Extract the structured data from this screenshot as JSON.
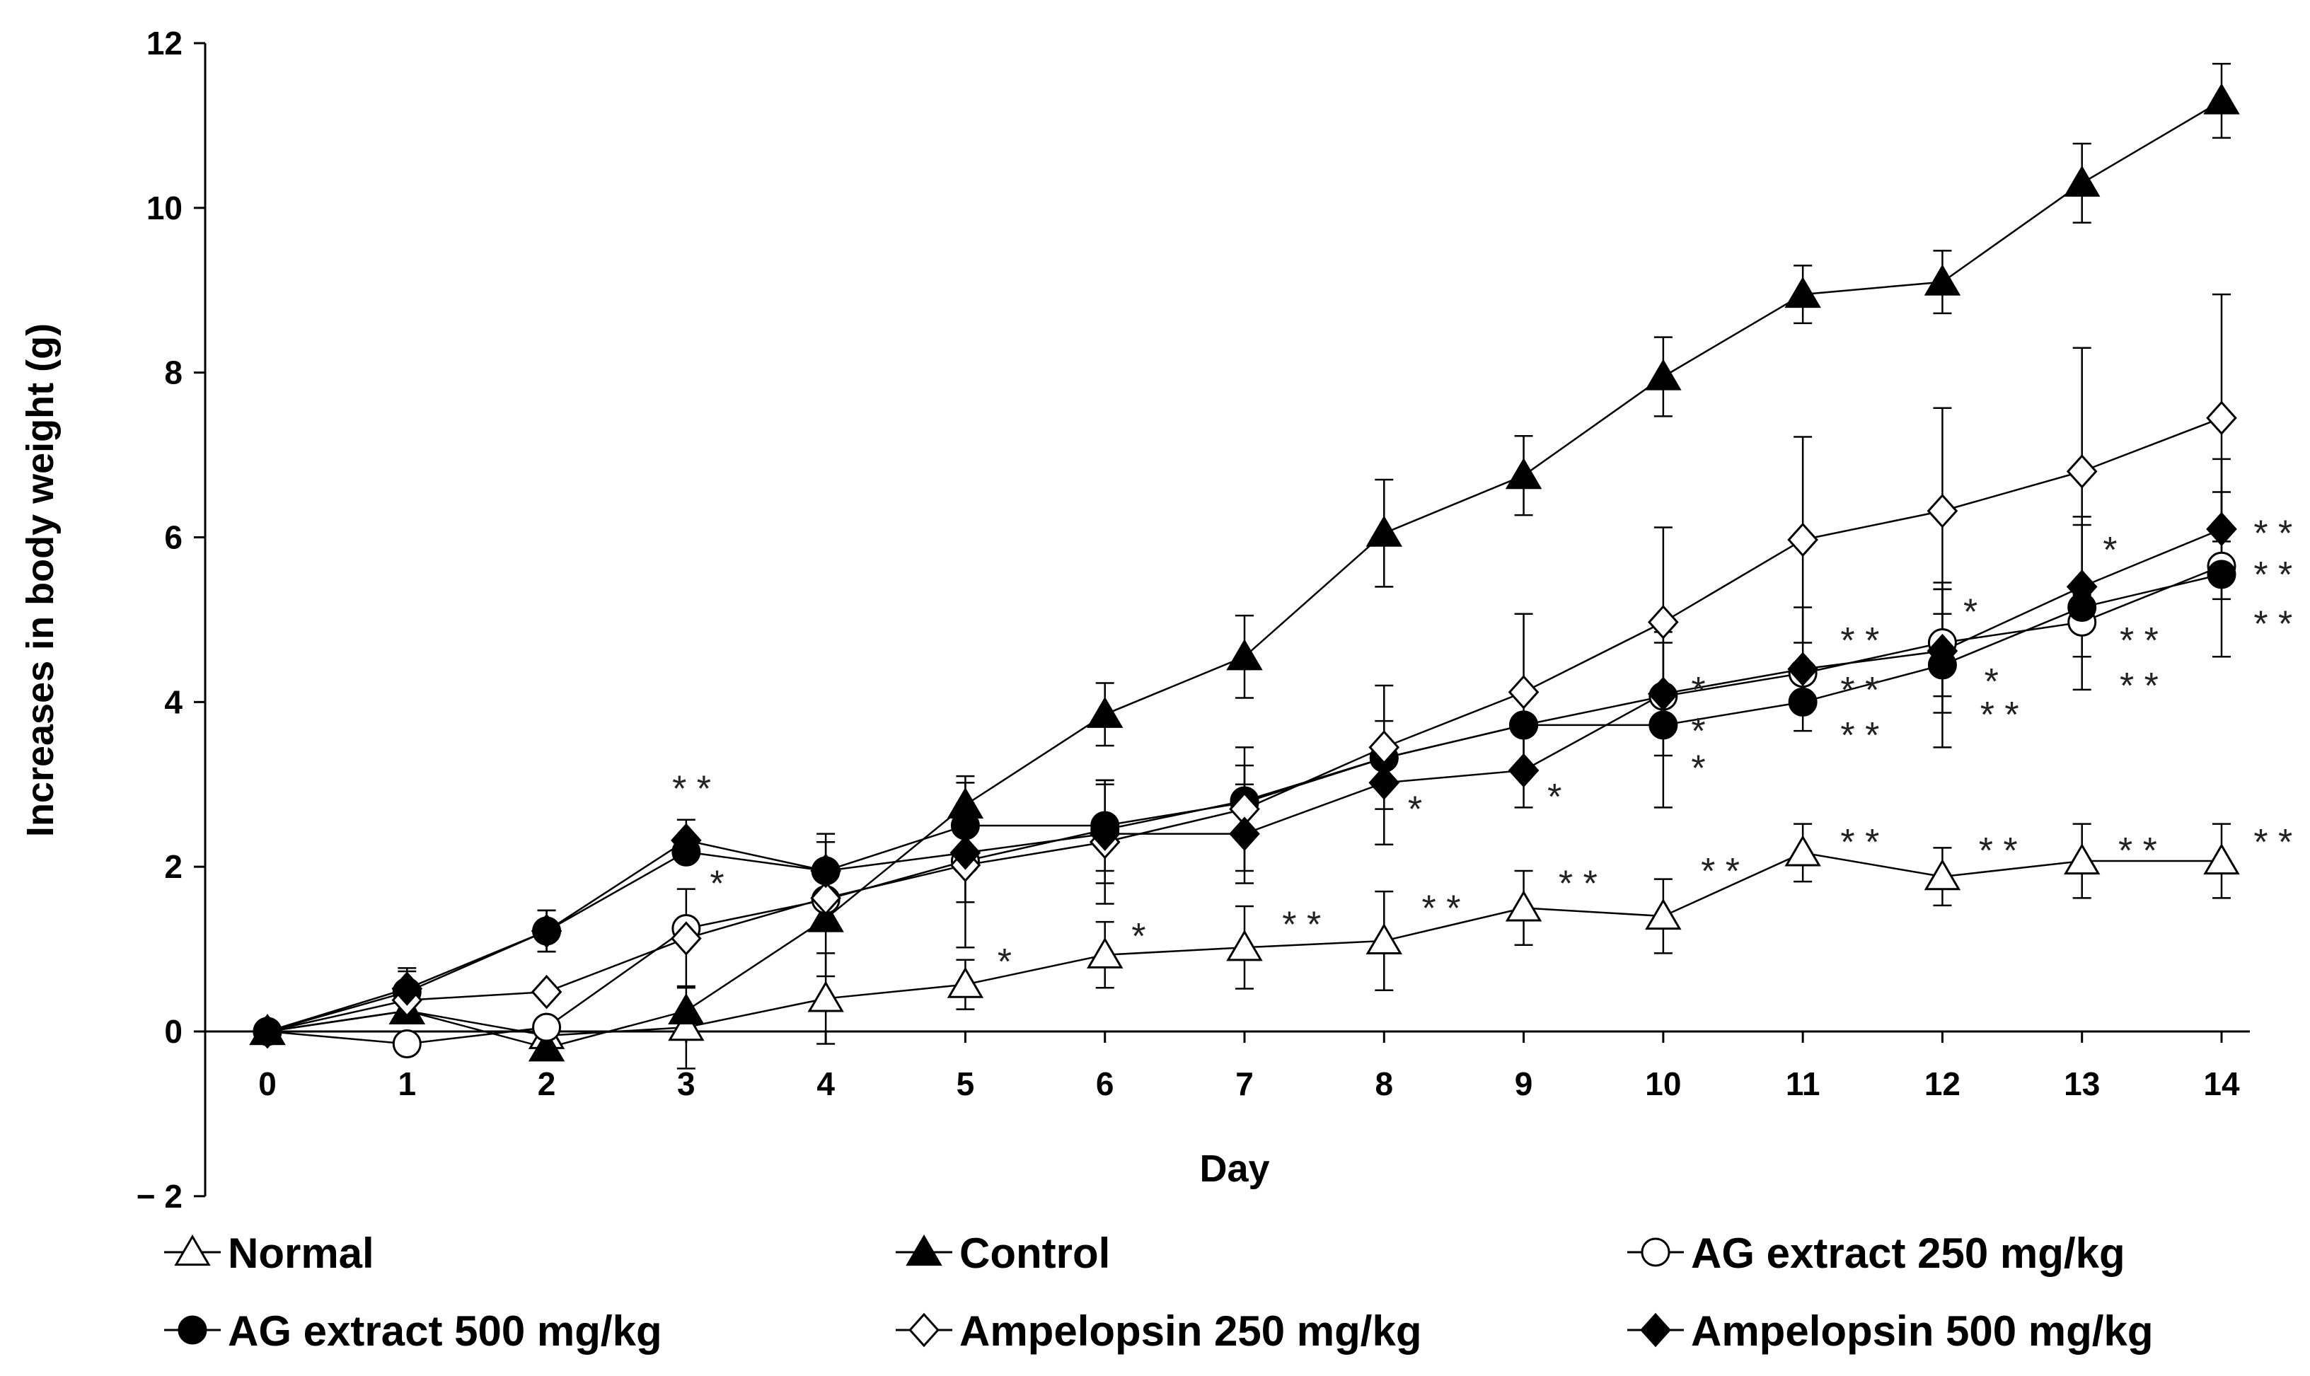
{
  "chart_data": {
    "type": "line",
    "title": "",
    "xlabel": "Day",
    "ylabel": "Increases in body weight (g)",
    "xlim": [
      0,
      14
    ],
    "ylim": [
      -2,
      12
    ],
    "x": [
      0,
      1,
      2,
      3,
      4,
      5,
      6,
      7,
      8,
      9,
      10,
      11,
      12,
      13,
      14
    ],
    "xtick_labels": [
      "0",
      "1",
      "2",
      "3",
      "4",
      "5",
      "6",
      "7",
      "8",
      "9",
      "10",
      "11",
      "12",
      "13",
      "14"
    ],
    "ytick_labels": [
      "− 2",
      "0",
      "2",
      "4",
      "6",
      "8",
      "10",
      "12"
    ],
    "ytick_values": [
      -2,
      0,
      2,
      4,
      6,
      8,
      10,
      12
    ],
    "legend_position": "bottom",
    "series": [
      {
        "name": "Normal",
        "marker": "triangle",
        "filled": false,
        "values": [
          0,
          0.25,
          -0.05,
          0.05,
          0.4,
          0.57,
          0.93,
          1.02,
          1.1,
          1.5,
          1.4,
          2.17,
          1.88,
          2.07,
          2.07
        ],
        "err": [
          0,
          0,
          0,
          0.5,
          0.55,
          0.3,
          0.4,
          0.5,
          0.6,
          0.45,
          0.45,
          0.35,
          0.35,
          0.45,
          0.45
        ],
        "sig": [
          "",
          "",
          "",
          "",
          "",
          "",
          "",
          "",
          "",
          "",
          "",
          "",
          "",
          "",
          ""
        ]
      },
      {
        "name": "Control",
        "marker": "triangle",
        "filled": true,
        "values": [
          0,
          0.25,
          -0.2,
          0.25,
          1.37,
          2.75,
          3.85,
          4.55,
          6.05,
          6.75,
          7.95,
          8.95,
          9.1,
          10.3,
          11.3
        ],
        "err": [
          0,
          0,
          0,
          0,
          0.7,
          0.35,
          0.38,
          0.5,
          0.65,
          0.48,
          0.48,
          0.35,
          0.38,
          0.48,
          0.45
        ],
        "sig": [
          "",
          "",
          "",
          "",
          "",
          "",
          "",
          "",
          "",
          "",
          "",
          "",
          "",
          "",
          ""
        ]
      },
      {
        "name": "AG extract 250 mg/kg",
        "marker": "circle",
        "filled": false,
        "values": [
          0,
          -0.15,
          0.05,
          1.25,
          1.6,
          2.07,
          2.45,
          2.8,
          3.32,
          3.72,
          4.07,
          4.35,
          4.72,
          4.97,
          5.65
        ],
        "err": [
          0,
          0,
          0,
          0,
          0,
          0,
          0,
          0,
          0,
          0,
          0,
          0,
          0.65,
          0,
          0
        ],
        "sig": [
          "",
          "",
          "",
          "*",
          "",
          "",
          "",
          "",
          "",
          "",
          "*",
          "**",
          "*",
          "**",
          "**"
        ]
      },
      {
        "name": "AG extract 500 mg/kg",
        "marker": "circle",
        "filled": true,
        "values": [
          0,
          0.48,
          1.22,
          2.18,
          1.95,
          2.5,
          2.5,
          2.78,
          3.32,
          3.72,
          3.72,
          4.0,
          4.45,
          5.15,
          5.55
        ],
        "err": [
          0,
          0.25,
          0.25,
          0,
          0.45,
          0,
          0.55,
          0.45,
          0,
          0,
          1.0,
          0,
          1.0,
          1.0,
          1.0
        ],
        "sig": [
          "",
          "",
          "",
          "",
          "",
          "",
          "",
          "",
          "",
          "",
          "*",
          "**",
          "**",
          "**",
          "**"
        ]
      },
      {
        "name": "Ampelopsin 250 mg/kg",
        "marker": "diamond",
        "filled": false,
        "values": [
          0,
          0.38,
          0.48,
          1.13,
          1.62,
          2.02,
          2.3,
          2.7,
          3.45,
          4.12,
          4.97,
          5.97,
          6.32,
          6.8,
          7.45
        ],
        "err": [
          0,
          0,
          0,
          0.6,
          0,
          1.0,
          0.75,
          0.75,
          0.75,
          0.95,
          1.15,
          1.25,
          1.25,
          1.5,
          1.5
        ],
        "sig": [
          "",
          "",
          "",
          "",
          "",
          "",
          "",
          "",
          "",
          "",
          "",
          "",
          "",
          "",
          ""
        ]
      },
      {
        "name": "Ampelopsin 500 mg/kg",
        "marker": "diamond",
        "filled": true,
        "values": [
          0,
          0.52,
          1.22,
          2.32,
          1.95,
          2.17,
          2.4,
          2.4,
          3.02,
          3.17,
          4.1,
          4.4,
          4.62,
          5.4,
          6.1
        ],
        "err": [
          0,
          0.25,
          0.25,
          0.25,
          0.35,
          0.6,
          0.6,
          0.6,
          0.75,
          0.45,
          0.75,
          0.75,
          0.75,
          0.85,
          0.85
        ],
        "sig": [
          "",
          "",
          "",
          "**",
          "",
          "",
          "",
          "",
          "",
          "",
          "",
          "",
          "",
          "",
          ""
        ]
      }
    ],
    "annotations": [
      {
        "text": "*",
        "x": 5.23,
        "y": 0.85
      },
      {
        "text": "*",
        "x": 6.19,
        "y": 1.16
      },
      {
        "text": "* *",
        "x": 7.27,
        "y": 1.3
      },
      {
        "text": "* *",
        "x": 8.27,
        "y": 1.5
      },
      {
        "text": "* *",
        "x": 9.25,
        "y": 1.8
      },
      {
        "text": "* *",
        "x": 10.27,
        "y": 1.95
      },
      {
        "text": "* *",
        "x": 11.27,
        "y": 2.3
      },
      {
        "text": "* *",
        "x": 12.26,
        "y": 2.2
      },
      {
        "text": "* *",
        "x": 13.26,
        "y": 2.2
      },
      {
        "text": "* *",
        "x": 14.23,
        "y": 2.3
      },
      {
        "text": "* *",
        "x": 2.9,
        "y": 2.95
      },
      {
        "text": "*",
        "x": 3.17,
        "y": 1.8
      },
      {
        "text": "*",
        "x": 8.17,
        "y": 2.7
      },
      {
        "text": "*",
        "x": 9.17,
        "y": 2.85
      },
      {
        "text": "*",
        "x": 10.2,
        "y": 4.15
      },
      {
        "text": "*",
        "x": 10.2,
        "y": 3.65
      },
      {
        "text": "*",
        "x": 10.2,
        "y": 3.2
      },
      {
        "text": "* *",
        "x": 11.27,
        "y": 4.75
      },
      {
        "text": "* *",
        "x": 11.27,
        "y": 4.15
      },
      {
        "text": "* *",
        "x": 11.27,
        "y": 3.6
      },
      {
        "text": "*",
        "x": 12.15,
        "y": 5.1
      },
      {
        "text": "*",
        "x": 12.3,
        "y": 4.25
      },
      {
        "text": "* *",
        "x": 12.27,
        "y": 3.85
      },
      {
        "text": "*",
        "x": 13.15,
        "y": 5.85
      },
      {
        "text": "* *",
        "x": 13.27,
        "y": 4.75
      },
      {
        "text": "* *",
        "x": 13.27,
        "y": 4.2
      },
      {
        "text": "* *",
        "x": 14.23,
        "y": 6.05
      },
      {
        "text": "* *",
        "x": 14.23,
        "y": 5.55
      },
      {
        "text": "* *",
        "x": 14.23,
        "y": 4.95
      }
    ]
  }
}
